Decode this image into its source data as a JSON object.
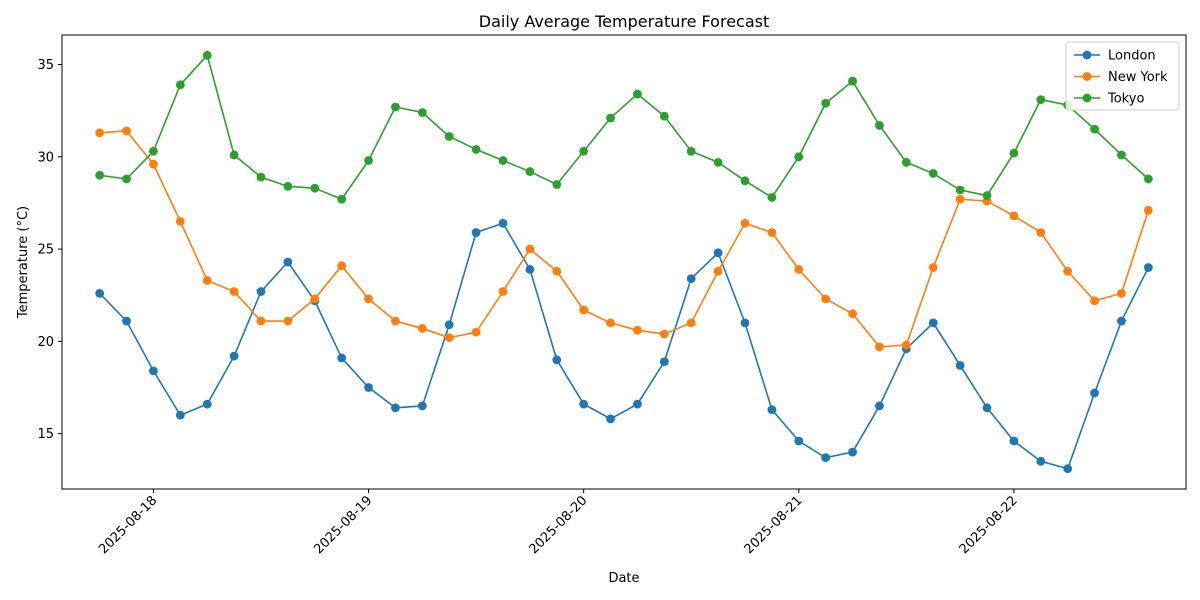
{
  "chart_data": {
    "type": "line",
    "title": "Daily Average Temperature Forecast",
    "xlabel": "Date",
    "ylabel": "Temperature (°C)",
    "x_tick_labels": [
      "2025-08-18",
      "2025-08-19",
      "2025-08-20",
      "2025-08-21",
      "2025-08-22"
    ],
    "y_ticks": [
      15,
      20,
      25,
      30,
      35
    ],
    "ylim": [
      12,
      36.6
    ],
    "xlim": [
      "2025-08-17 13:48",
      "2025-08-22 19:12"
    ],
    "x": [
      "2025-08-17 18:00",
      "2025-08-17 21:00",
      "2025-08-18 00:00",
      "2025-08-18 03:00",
      "2025-08-18 06:00",
      "2025-08-18 09:00",
      "2025-08-18 12:00",
      "2025-08-18 15:00",
      "2025-08-18 18:00",
      "2025-08-18 21:00",
      "2025-08-19 00:00",
      "2025-08-19 03:00",
      "2025-08-19 06:00",
      "2025-08-19 09:00",
      "2025-08-19 12:00",
      "2025-08-19 15:00",
      "2025-08-19 18:00",
      "2025-08-19 21:00",
      "2025-08-20 00:00",
      "2025-08-20 03:00",
      "2025-08-20 06:00",
      "2025-08-20 09:00",
      "2025-08-20 12:00",
      "2025-08-20 15:00",
      "2025-08-20 18:00",
      "2025-08-20 21:00",
      "2025-08-21 00:00",
      "2025-08-21 03:00",
      "2025-08-21 06:00",
      "2025-08-21 09:00",
      "2025-08-21 12:00",
      "2025-08-21 15:00",
      "2025-08-21 18:00",
      "2025-08-21 21:00",
      "2025-08-22 00:00",
      "2025-08-22 03:00",
      "2025-08-22 06:00",
      "2025-08-22 09:00",
      "2025-08-22 12:00",
      "2025-08-22 15:00"
    ],
    "series": [
      {
        "name": "London",
        "color": "#1f77b4",
        "values": [
          22.6,
          21.1,
          18.4,
          16.0,
          16.6,
          19.2,
          22.7,
          24.3,
          22.2,
          19.1,
          17.5,
          16.4,
          16.5,
          20.9,
          25.9,
          26.4,
          23.9,
          19.0,
          16.6,
          15.8,
          16.6,
          18.9,
          23.4,
          24.8,
          21.0,
          16.3,
          14.6,
          13.7,
          14.0,
          16.5,
          19.6,
          21.0,
          18.7,
          16.4,
          14.6,
          13.5,
          13.1,
          17.2,
          21.1,
          24.0
        ]
      },
      {
        "name": "New York",
        "color": "#ff7f0e",
        "values": [
          31.3,
          31.4,
          29.6,
          26.5,
          23.3,
          22.7,
          21.1,
          21.1,
          22.3,
          24.1,
          22.3,
          21.1,
          20.7,
          20.2,
          20.5,
          22.7,
          25.0,
          23.8,
          21.7,
          21.0,
          20.6,
          20.4,
          21.0,
          23.8,
          26.4,
          25.9,
          23.9,
          22.3,
          21.5,
          19.7,
          19.8,
          24.0,
          27.7,
          27.6,
          26.8,
          25.9,
          23.8,
          22.2,
          22.6,
          27.1
        ]
      },
      {
        "name": "Tokyo",
        "color": "#2ca02c",
        "values": [
          29.0,
          28.8,
          30.3,
          33.9,
          35.5,
          30.1,
          28.9,
          28.4,
          28.3,
          27.7,
          29.8,
          32.7,
          32.4,
          31.1,
          30.4,
          29.8,
          29.2,
          28.5,
          30.3,
          32.1,
          33.4,
          32.2,
          30.3,
          29.7,
          28.7,
          27.8,
          30.0,
          32.9,
          34.1,
          31.7,
          29.7,
          29.1,
          28.2,
          27.9,
          30.2,
          33.1,
          32.8,
          31.5,
          30.1,
          28.8
        ]
      }
    ],
    "legend": {
      "placement": "top-right",
      "entries": [
        "London",
        "New York",
        "Tokyo"
      ]
    },
    "grid": false
  }
}
